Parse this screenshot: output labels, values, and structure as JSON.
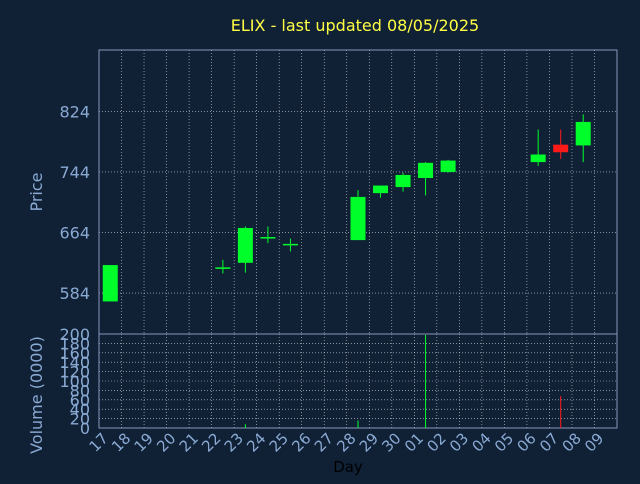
{
  "title": "ELIX - last updated 08/05/2025",
  "colors": {
    "background": "#102035",
    "plot_border": "#8899bb",
    "grid": "#ffffff",
    "title": "#ffff44",
    "axis_text": "#8aaad4",
    "xlabel_text": "#000000",
    "up": "#00ff2a",
    "down": "#ff1a1a"
  },
  "chart_data": [
    {
      "type": "candlestick",
      "title": "ELIX - last updated 08/05/2025",
      "ylabel": "Price",
      "ylim": [
        530,
        905
      ],
      "yticks": [
        584,
        664,
        744,
        824
      ],
      "grid": true,
      "categories": [
        "17",
        "18",
        "19",
        "20",
        "21",
        "22",
        "23",
        "24",
        "25",
        "26",
        "27",
        "28",
        "29",
        "30",
        "01",
        "02",
        "03",
        "04",
        "05",
        "06",
        "07",
        "08",
        "09"
      ],
      "candles": [
        {
          "x": "17",
          "open": 573,
          "high": 621,
          "low": 573,
          "close": 621
        },
        {
          "x": "22",
          "open": 616,
          "high": 628,
          "low": 610,
          "close": 618
        },
        {
          "x": "23",
          "open": 624,
          "high": 672,
          "low": 611,
          "close": 670
        },
        {
          "x": "24",
          "open": 657,
          "high": 672,
          "low": 650,
          "close": 658
        },
        {
          "x": "25",
          "open": 648,
          "high": 656,
          "low": 639,
          "close": 649
        },
        {
          "x": "28",
          "open": 654,
          "high": 720,
          "low": 654,
          "close": 711
        },
        {
          "x": "29",
          "open": 716,
          "high": 726,
          "low": 710,
          "close": 726
        },
        {
          "x": "30",
          "open": 724,
          "high": 743,
          "low": 718,
          "close": 740
        },
        {
          "x": "01",
          "open": 736,
          "high": 757,
          "low": 713,
          "close": 756
        },
        {
          "x": "02",
          "open": 744,
          "high": 760,
          "low": 743,
          "close": 759
        },
        {
          "x": "06",
          "open": 757,
          "high": 800,
          "low": 752,
          "close": 767
        },
        {
          "x": "07",
          "open": 780,
          "high": 800,
          "low": 761,
          "close": 770
        },
        {
          "x": "08",
          "open": 779,
          "high": 820,
          "low": 757,
          "close": 810
        }
      ]
    },
    {
      "type": "bar",
      "xlabel": "Day",
      "ylabel": "Volume (0000)",
      "ylim": [
        0,
        200
      ],
      "yticks": [
        0,
        20,
        40,
        60,
        80,
        100,
        120,
        140,
        160,
        180,
        200
      ],
      "grid": true,
      "categories": [
        "17",
        "18",
        "19",
        "20",
        "21",
        "22",
        "23",
        "24",
        "25",
        "26",
        "27",
        "28",
        "29",
        "30",
        "01",
        "02",
        "03",
        "04",
        "05",
        "06",
        "07",
        "08",
        "09"
      ],
      "bars": [
        {
          "x": "23",
          "value": 8,
          "direction": "up"
        },
        {
          "x": "28",
          "value": 16,
          "direction": "up"
        },
        {
          "x": "01",
          "value": 198,
          "direction": "up"
        },
        {
          "x": "07",
          "value": 68,
          "direction": "down"
        }
      ]
    }
  ]
}
